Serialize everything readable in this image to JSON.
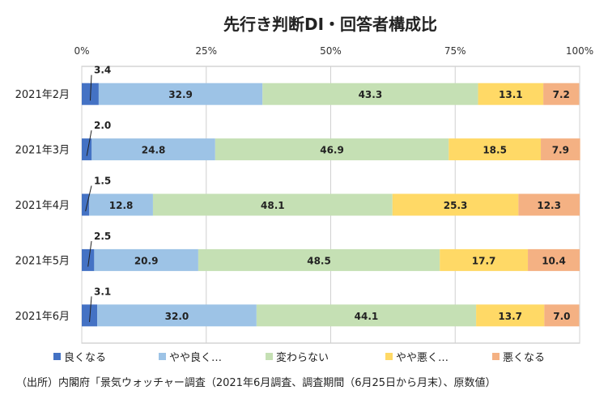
{
  "chart_data": {
    "type": "bar",
    "orientation": "horizontal",
    "stacked": true,
    "title": "先行き判断DI・回答者構成比",
    "x_ticks": [
      "0%",
      "25%",
      "50%",
      "75%",
      "100%"
    ],
    "xlim": [
      0,
      100
    ],
    "categories": [
      "2021年2月",
      "2021年3月",
      "2021年4月",
      "2021年5月",
      "2021年6月"
    ],
    "series": [
      {
        "name": "良くなる",
        "color": "#4472C4",
        "values": [
          3.4,
          2.0,
          1.5,
          2.5,
          3.1
        ],
        "labels": [
          "3.4",
          "2.0",
          "1.5",
          "2.5",
          "3.1"
        ]
      },
      {
        "name": "やや良く…",
        "color": "#9DC3E6",
        "values": [
          32.9,
          24.8,
          12.8,
          20.9,
          32.0
        ],
        "labels": [
          "32.9",
          "24.8",
          "12.8",
          "20.9",
          "32.0"
        ]
      },
      {
        "name": "変わらない",
        "color": "#C5E0B4",
        "values": [
          43.3,
          46.9,
          48.1,
          48.5,
          44.1
        ],
        "labels": [
          "43.3",
          "46.9",
          "48.1",
          "48.5",
          "44.1"
        ]
      },
      {
        "name": "やや悪く…",
        "color": "#FFD966",
        "values": [
          13.1,
          18.5,
          25.3,
          17.7,
          13.7
        ],
        "labels": [
          "13.1",
          "18.5",
          "25.3",
          "17.7",
          "13.7"
        ]
      },
      {
        "name": "悪くなる",
        "color": "#F4B183",
        "values": [
          7.2,
          7.9,
          12.3,
          10.4,
          7.0
        ],
        "labels": [
          "7.2",
          "7.9",
          "12.3",
          "10.4",
          "7.0"
        ]
      }
    ],
    "grid": "vertical",
    "legend_position": "bottom"
  },
  "source_note": "（出所）内閣府「景気ウォッチャー調査（2021年6月調査、調査期間（6月25日から月末）、原数値）"
}
